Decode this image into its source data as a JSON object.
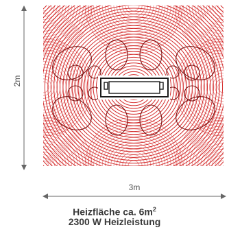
{
  "colors": {
    "pattern": "#d42a2a",
    "pattern_accent": "#e05050",
    "dimension": "#666666",
    "heater_outline": "#1a1a1a",
    "text": "#3a3a3a"
  },
  "dimensions": {
    "height_label": "2m",
    "width_label": "3m"
  },
  "caption": {
    "line1_prefix": "Heizfläche ca. 6m",
    "line1_superscript": "2",
    "line2": "2300 W Heizleistung"
  },
  "icons": {
    "heater": "heater-panel-icon",
    "arrow_up": "arrow-up-icon",
    "arrow_down": "arrow-down-icon",
    "arrow_left": "arrow-left-icon",
    "arrow_right": "arrow-right-icon"
  }
}
